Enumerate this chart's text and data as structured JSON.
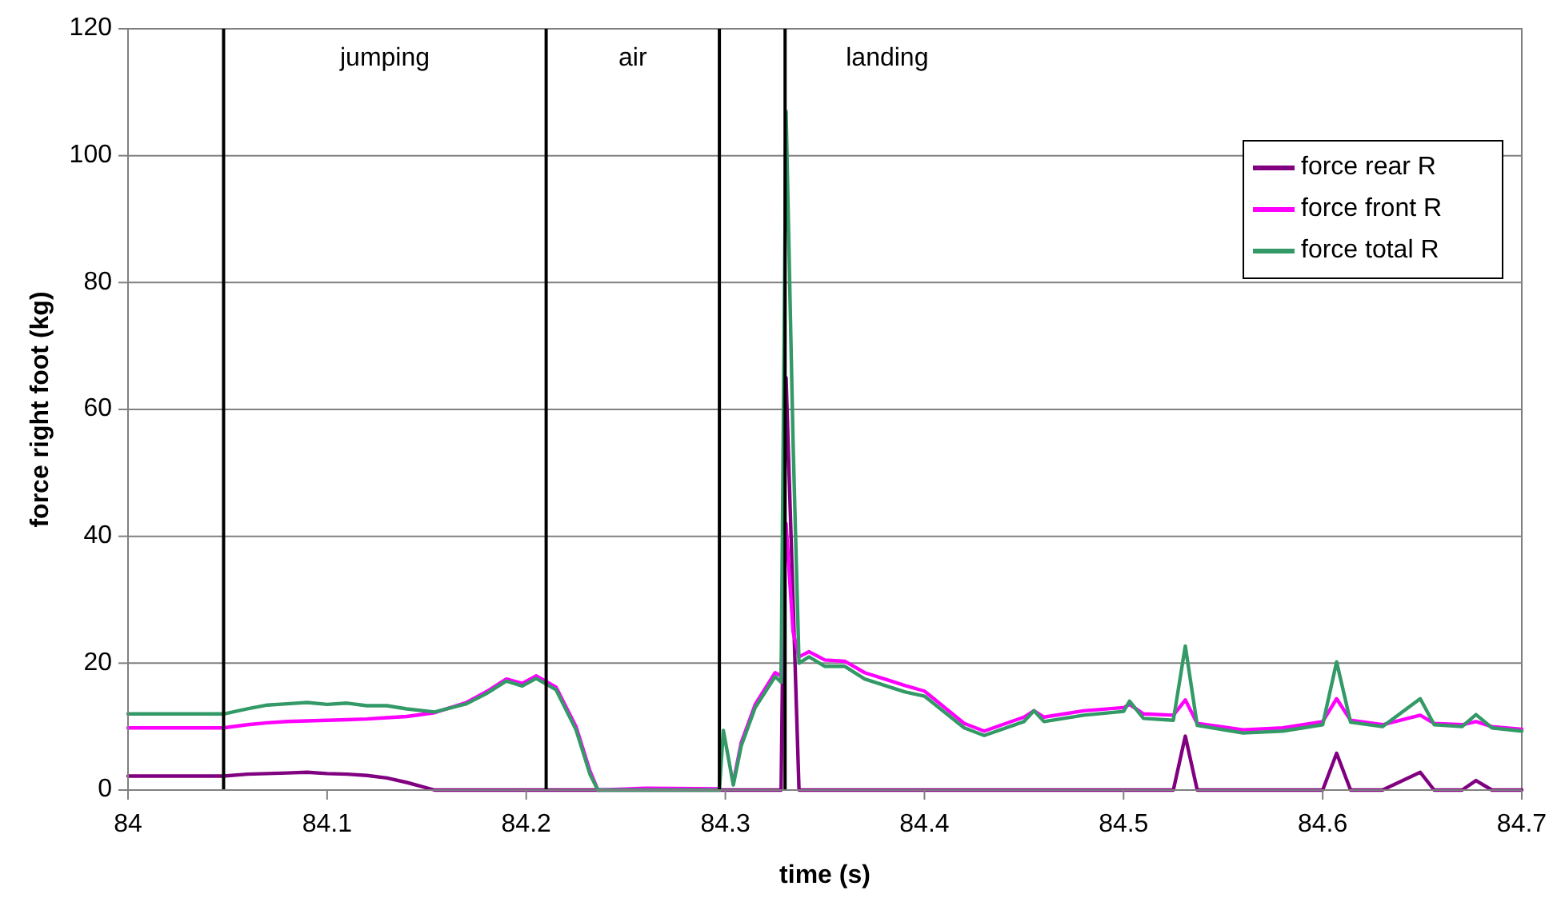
{
  "chart_data": {
    "type": "line",
    "xlabel": "time (s)",
    "ylabel": "force right foot (kg)",
    "x": [
      84,
      84.048,
      84.06,
      84.07,
      84.08,
      84.09,
      84.1,
      84.11,
      84.12,
      84.13,
      84.14,
      84.154,
      84.17,
      84.18,
      84.19,
      84.198,
      84.205,
      84.215,
      84.225,
      84.232,
      84.236,
      84.26,
      84.297,
      84.299,
      84.304,
      84.308,
      84.315,
      84.325,
      84.328,
      84.3305,
      84.334,
      84.337,
      84.342,
      84.35,
      84.36,
      84.37,
      84.38,
      84.39,
      84.4,
      84.42,
      84.43,
      84.45,
      84.455,
      84.46,
      84.48,
      84.5,
      84.503,
      84.51,
      84.525,
      84.531,
      84.537,
      84.56,
      84.58,
      84.6,
      84.607,
      84.614,
      84.63,
      84.649,
      84.656,
      84.67,
      84.677,
      84.685,
      84.7
    ],
    "series": [
      {
        "name": "force rear R",
        "color": "#800080",
        "values": [
          2.2,
          2.2,
          2.5,
          2.6,
          2.7,
          2.8,
          2.6,
          2.5,
          2.3,
          1.9,
          1.2,
          0,
          0,
          0,
          0,
          0,
          0,
          0,
          0,
          0,
          0,
          0,
          0,
          0,
          0,
          0,
          0,
          0,
          0,
          65,
          30,
          0,
          0,
          0,
          0,
          0,
          0,
          0,
          0,
          0,
          0,
          0,
          0,
          0,
          0,
          0,
          0,
          0,
          0,
          8.5,
          0,
          0,
          0,
          0,
          5.8,
          0,
          0,
          2.8,
          0,
          0,
          1.5,
          0,
          0
        ]
      },
      {
        "name": "force front R",
        "color": "#ff00ff",
        "values": [
          9.8,
          9.8,
          10.3,
          10.6,
          10.8,
          10.9,
          11,
          11.1,
          11.2,
          11.4,
          11.6,
          12.2,
          13.8,
          15.5,
          17.5,
          16.8,
          18,
          16.2,
          10,
          3,
          0,
          0.3,
          0.2,
          null,
          1.2,
          7.5,
          13.5,
          18.5,
          18,
          42,
          25,
          21,
          21.8,
          20.5,
          20.3,
          18.5,
          17.5,
          16.5,
          15.6,
          10.5,
          9.3,
          11.5,
          12.5,
          11.5,
          12.5,
          13,
          13.5,
          12,
          11.8,
          14.2,
          10.5,
          9.5,
          9.8,
          10.8,
          14.4,
          11,
          10.3,
          11.8,
          10.5,
          10.3,
          10.8,
          10,
          9.6
        ]
      },
      {
        "name": "force total R",
        "color": "#339966",
        "values": [
          12,
          12,
          12.8,
          13.4,
          13.6,
          13.8,
          13.5,
          13.7,
          13.3,
          13.3,
          12.8,
          12.3,
          13.6,
          15.2,
          17.2,
          16.4,
          17.6,
          15.8,
          9.5,
          2.5,
          0,
          0,
          0,
          9.4,
          0.8,
          7,
          13,
          17.9,
          17,
          107,
          55,
          20,
          21,
          19.5,
          19.5,
          17.5,
          16.5,
          15.5,
          14.8,
          9.8,
          8.6,
          10.8,
          12.5,
          10.8,
          11.8,
          12.4,
          14,
          11.3,
          11,
          22.7,
          10.2,
          9,
          9.3,
          10.3,
          20.2,
          10.7,
          10,
          14.4,
          10.3,
          10,
          11.9,
          9.8,
          9.3
        ]
      }
    ],
    "xlim": [
      84,
      84.7
    ],
    "xticks": [
      84,
      84.1,
      84.2,
      84.3,
      84.4,
      84.5,
      84.6,
      84.7
    ],
    "ylim": [
      0,
      120
    ],
    "yticks": [
      0,
      20,
      40,
      60,
      80,
      100,
      120
    ],
    "grid": "y",
    "legend": "top right",
    "marker": "none",
    "line_style": "solid",
    "ref_lines": [
      {
        "axis": "x",
        "value": 84.048,
        "color": "#000000"
      },
      {
        "axis": "x",
        "value": 84.21,
        "color": "#000000"
      },
      {
        "axis": "x",
        "value": 84.297,
        "color": "#000000"
      },
      {
        "axis": "x",
        "value": 84.33,
        "color": "#000000"
      }
    ],
    "annotations": [
      "jumping",
      "air",
      "landing"
    ]
  }
}
